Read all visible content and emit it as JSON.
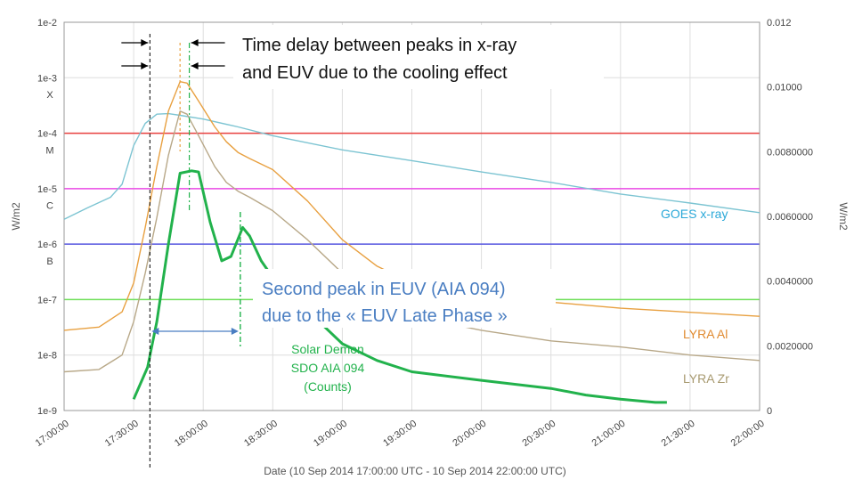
{
  "chart_data": {
    "type": "line",
    "x_axis": {
      "label": "Date (10 Sep 2014 17:00:00 UTC - 10 Sep 2014 22:00:00 UTC)",
      "ticks": [
        "17:00:00",
        "17:30:00",
        "18:00:00",
        "18:30:00",
        "19:00:00",
        "19:30:00",
        "20:00:00",
        "20:30:00",
        "21:00:00",
        "21:30:00",
        "22:00:00"
      ],
      "range": [
        "17:00",
        "22:00"
      ]
    },
    "y_left": {
      "label": "W/m2",
      "scale": "log",
      "range": [
        1e-09,
        0.01
      ],
      "ticks": [
        "1e-2",
        "1e-3",
        "1e-4",
        "1e-5",
        "1e-6",
        "1e-7",
        "1e-8",
        "1e-9"
      ],
      "class_labels": [
        {
          "text": "X",
          "value": 0.0005
        },
        {
          "text": "M",
          "value": 5e-05
        },
        {
          "text": "C",
          "value": 5e-06
        },
        {
          "text": "B",
          "value": 5e-07
        }
      ]
    },
    "y_right": {
      "label": "W/m2",
      "scale": "linear",
      "range": [
        0,
        0.012
      ],
      "ticks": [
        "0",
        "0.0020000",
        "0.0040000",
        "0.0060000",
        "0.0080000",
        "0.01000",
        "0.012"
      ]
    },
    "grid": true,
    "threshold_lines": [
      {
        "level": "X",
        "value": 0.0001,
        "color": "#e8403f"
      },
      {
        "level": "M",
        "value": 1e-05,
        "color": "#ea4be6"
      },
      {
        "level": "C",
        "value": 1e-06,
        "color": "#5757e0"
      },
      {
        "level": "B",
        "value": 1e-07,
        "color": "#71e05a"
      }
    ],
    "series": [
      {
        "name": "GOES x-ray",
        "color": "#7cc4d2",
        "axis": "left",
        "points": [
          [
            "17:00",
            2.8e-06
          ],
          [
            "17:10",
            4.5e-06
          ],
          [
            "17:20",
            7e-06
          ],
          [
            "17:25",
            1.2e-05
          ],
          [
            "17:30",
            6e-05
          ],
          [
            "17:35",
            0.00015
          ],
          [
            "17:40",
            0.00022
          ],
          [
            "17:45",
            0.000225
          ],
          [
            "17:50",
            0.00021
          ],
          [
            "18:00",
            0.00018
          ],
          [
            "18:15",
            0.00013
          ],
          [
            "18:30",
            9e-05
          ],
          [
            "19:00",
            5e-05
          ],
          [
            "19:30",
            3.2e-05
          ],
          [
            "20:00",
            2e-05
          ],
          [
            "20:30",
            1.3e-05
          ],
          [
            "21:00",
            8e-06
          ],
          [
            "21:30",
            5.5e-06
          ],
          [
            "22:00",
            3.7e-06
          ]
        ]
      },
      {
        "name": "LYRA Al",
        "color": "#e8a040",
        "axis": "left",
        "points": [
          [
            "17:00",
            2.8e-08
          ],
          [
            "17:15",
            3.2e-08
          ],
          [
            "17:25",
            6e-08
          ],
          [
            "17:30",
            2e-07
          ],
          [
            "17:35",
            2e-06
          ],
          [
            "17:40",
            2.5e-05
          ],
          [
            "17:45",
            0.00025
          ],
          [
            "17:50",
            0.00085
          ],
          [
            "17:53",
            0.0008
          ],
          [
            "17:58",
            0.00038
          ],
          [
            "18:05",
            0.00013
          ],
          [
            "18:10",
            7e-05
          ],
          [
            "18:15",
            4.5e-05
          ],
          [
            "18:20",
            3.5e-05
          ],
          [
            "18:30",
            2.2e-05
          ],
          [
            "18:45",
            6e-06
          ],
          [
            "19:00",
            1.2e-06
          ],
          [
            "19:15",
            4e-07
          ],
          [
            "19:30",
            2e-07
          ],
          [
            "20:00",
            1.3e-07
          ],
          [
            "20:30",
            9e-08
          ],
          [
            "21:00",
            7e-08
          ],
          [
            "22:00",
            5e-08
          ]
        ]
      },
      {
        "name": "LYRA Zr",
        "color": "#b8a888",
        "axis": "left",
        "points": [
          [
            "17:00",
            5e-09
          ],
          [
            "17:15",
            5.5e-09
          ],
          [
            "17:25",
            1e-08
          ],
          [
            "17:30",
            4e-08
          ],
          [
            "17:35",
            3e-07
          ],
          [
            "17:40",
            3e-06
          ],
          [
            "17:45",
            4e-05
          ],
          [
            "17:50",
            0.00025
          ],
          [
            "17:53",
            0.00022
          ],
          [
            "17:58",
            9e-05
          ],
          [
            "18:05",
            2.5e-05
          ],
          [
            "18:10",
            1.3e-05
          ],
          [
            "18:15",
            9e-06
          ],
          [
            "18:20",
            7e-06
          ],
          [
            "18:30",
            4e-06
          ],
          [
            "18:45",
            1.2e-06
          ],
          [
            "19:00",
            3e-07
          ],
          [
            "19:30",
            5e-08
          ],
          [
            "20:00",
            2.8e-08
          ],
          [
            "20:30",
            1.8e-08
          ],
          [
            "21:00",
            1.4e-08
          ],
          [
            "21:30",
            1e-08
          ],
          [
            "22:00",
            8e-09
          ]
        ]
      },
      {
        "name": "Solar Demon SDO AIA 094 (Counts)",
        "color": "#22b24c",
        "axis": "left",
        "points": [
          [
            "17:30",
            1.6e-09
          ],
          [
            "17:36",
            6e-09
          ],
          [
            "17:40",
            4e-08
          ],
          [
            "17:45",
            1e-06
          ],
          [
            "17:50",
            1.9e-05
          ],
          [
            "17:55",
            2.1e-05
          ],
          [
            "17:58",
            2e-05
          ],
          [
            "18:03",
            2.5e-06
          ],
          [
            "18:08",
            5e-07
          ],
          [
            "18:12",
            6e-07
          ],
          [
            "18:17",
            2e-06
          ],
          [
            "18:20",
            1.4e-06
          ],
          [
            "18:25",
            5e-07
          ],
          [
            "18:30",
            2.5e-07
          ],
          [
            "18:40",
            1e-07
          ],
          [
            "18:50",
            4e-08
          ],
          [
            "19:00",
            1.6e-08
          ],
          [
            "19:15",
            8e-09
          ],
          [
            "19:30",
            5e-09
          ],
          [
            "20:00",
            3.5e-09
          ],
          [
            "20:30",
            2.5e-09
          ],
          [
            "20:45",
            1.9e-09
          ],
          [
            "21:00",
            1.6e-09
          ],
          [
            "21:15",
            1.4e-09
          ],
          [
            "21:20",
            1.4e-09
          ]
        ]
      }
    ],
    "series_labels": {
      "goes": "GOES x-ray",
      "lyra_al": "LYRA Al",
      "lyra_zr": "LYRA Zr",
      "aia": [
        "Solar Demon",
        "SDO AIA 094",
        "(Counts)"
      ]
    },
    "annotations": {
      "time_delay": [
        "Time delay between peaks in x-ray",
        "and EUV due to the cooling effect"
      ],
      "second_peak": [
        "Second peak in EUV (AIA 094)",
        "due to the « EUV Late Phase »"
      ]
    }
  },
  "colors": {
    "grid": "#dedede",
    "plot_border": "#999999",
    "callout_blue": "#4a7ec2",
    "aia_green": "#22b24c",
    "goes_text": "#2aa8d8",
    "lyra_al_text": "#e08a30",
    "lyra_zr_text": "#a89a70"
  }
}
